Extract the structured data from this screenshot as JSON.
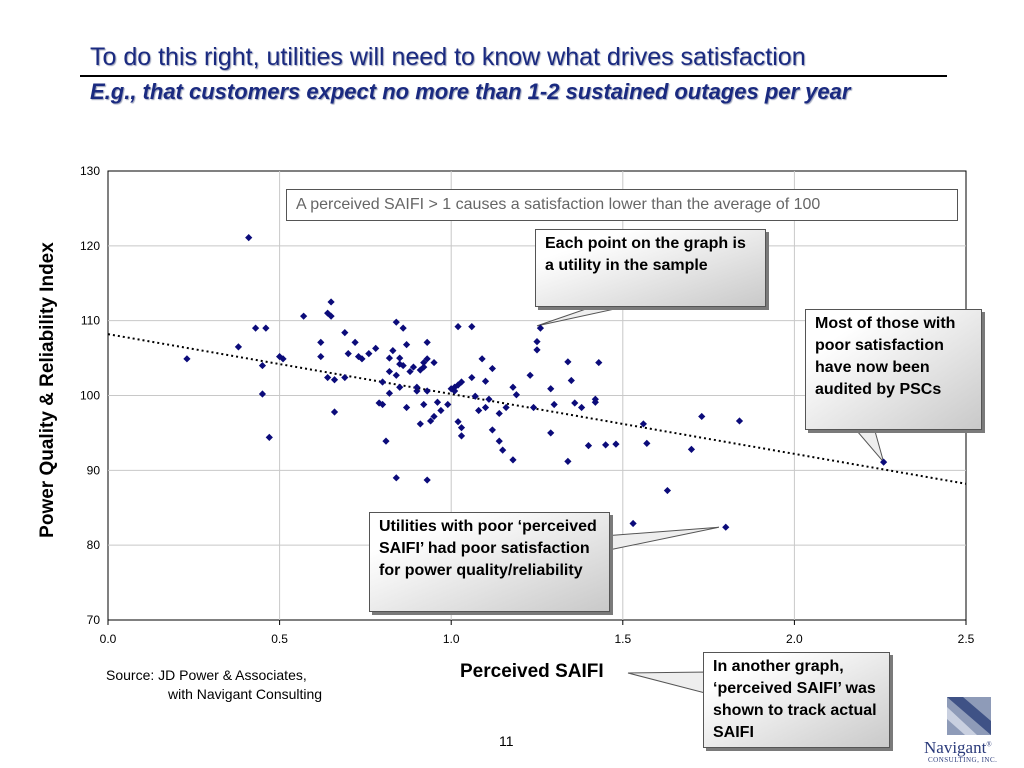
{
  "slide": {
    "title": "To do this right, utilities will need to know what drives satisfaction",
    "subtitle": "E.g., that customers expect no more than 1-2 sustained outages per year",
    "page_number": "11",
    "source_line1": "Source: JD Power & Associates,",
    "source_line2": "with Navigant Consulting",
    "logo_name": "Navigant",
    "logo_sub": "CONSULTING, INC.",
    "logo_mark": "®"
  },
  "annotations": {
    "box": "A perceived SAIFI > 1 causes a satisfaction lower than the average of 100",
    "points_callout": "Each point on the graph is a utility in the sample",
    "psc_callout": "Most of those with poor satisfaction have now been audited by PSCs",
    "poor_callout": "Utilities with poor ‘perceived SAIFI’ had poor satisfaction for power quality/reliability",
    "track_callout": "In another graph, ‘perceived SAIFI’ was shown to track actual SAIFI"
  },
  "colors": {
    "title": "#1a2a80",
    "marker": "#0b0b7a",
    "trendline": "#000000",
    "grid": "#c8c8c8"
  },
  "chart_data": {
    "type": "scatter",
    "xlabel": "Perceived SAIFI",
    "ylabel": "Power Quality & Reliability Index",
    "xlim": [
      0,
      2.5
    ],
    "ylim": [
      70,
      130
    ],
    "x_ticks": [
      "0.0",
      "0.5",
      "1.0",
      "1.5",
      "2.0",
      "2.5"
    ],
    "y_ticks": [
      "70",
      "80",
      "90",
      "100",
      "110",
      "120",
      "130"
    ],
    "grid": true,
    "trendline": {
      "style": "dotted",
      "x": [
        0,
        2.5
      ],
      "y": [
        108.2,
        88.2
      ]
    },
    "points": [
      [
        0.23,
        104.9
      ],
      [
        0.38,
        106.5
      ],
      [
        0.41,
        121.1
      ],
      [
        0.43,
        109.0
      ],
      [
        0.45,
        100.2
      ],
      [
        0.45,
        104.0
      ],
      [
        0.46,
        109.0
      ],
      [
        0.47,
        94.4
      ],
      [
        0.5,
        105.2
      ],
      [
        0.51,
        104.9
      ],
      [
        0.57,
        110.6
      ],
      [
        0.62,
        107.1
      ],
      [
        0.62,
        105.2
      ],
      [
        0.64,
        111.0
      ],
      [
        0.64,
        102.4
      ],
      [
        0.65,
        110.6
      ],
      [
        0.65,
        112.5
      ],
      [
        0.66,
        97.8
      ],
      [
        0.66,
        102.1
      ],
      [
        0.69,
        108.4
      ],
      [
        0.69,
        102.4
      ],
      [
        0.7,
        105.6
      ],
      [
        0.72,
        107.1
      ],
      [
        0.73,
        105.2
      ],
      [
        0.74,
        104.9
      ],
      [
        0.76,
        105.6
      ],
      [
        0.78,
        106.3
      ],
      [
        0.79,
        99.0
      ],
      [
        0.8,
        101.8
      ],
      [
        0.8,
        98.8
      ],
      [
        0.81,
        93.9
      ],
      [
        0.82,
        105.0
      ],
      [
        0.82,
        103.2
      ],
      [
        0.82,
        100.3
      ],
      [
        0.83,
        106.0
      ],
      [
        0.84,
        109.8
      ],
      [
        0.84,
        102.7
      ],
      [
        0.84,
        89.0
      ],
      [
        0.85,
        105.0
      ],
      [
        0.85,
        104.2
      ],
      [
        0.85,
        101.1
      ],
      [
        0.86,
        109.0
      ],
      [
        0.86,
        104.0
      ],
      [
        0.87,
        106.8
      ],
      [
        0.87,
        98.4
      ],
      [
        0.88,
        103.2
      ],
      [
        0.89,
        103.8
      ],
      [
        0.9,
        101.1
      ],
      [
        0.9,
        100.6
      ],
      [
        0.91,
        96.2
      ],
      [
        0.91,
        103.4
      ],
      [
        0.92,
        98.8
      ],
      [
        0.92,
        103.8
      ],
      [
        0.92,
        104.4
      ],
      [
        0.93,
        104.9
      ],
      [
        0.93,
        107.1
      ],
      [
        0.93,
        100.6
      ],
      [
        0.93,
        88.7
      ],
      [
        0.94,
        96.6
      ],
      [
        0.95,
        104.4
      ],
      [
        0.95,
        97.2
      ],
      [
        0.96,
        99.1
      ],
      [
        0.97,
        98.0
      ],
      [
        0.99,
        98.8
      ],
      [
        1.0,
        100.9
      ],
      [
        1.01,
        101.1
      ],
      [
        1.01,
        100.6
      ],
      [
        1.02,
        109.2
      ],
      [
        1.02,
        101.4
      ],
      [
        1.02,
        96.5
      ],
      [
        1.03,
        101.8
      ],
      [
        1.03,
        95.7
      ],
      [
        1.03,
        94.6
      ],
      [
        1.06,
        109.2
      ],
      [
        1.06,
        102.4
      ],
      [
        1.07,
        99.9
      ],
      [
        1.08,
        98.0
      ],
      [
        1.09,
        104.9
      ],
      [
        1.1,
        101.9
      ],
      [
        1.1,
        98.4
      ],
      [
        1.11,
        99.5
      ],
      [
        1.12,
        103.6
      ],
      [
        1.12,
        95.4
      ],
      [
        1.14,
        97.6
      ],
      [
        1.14,
        93.9
      ],
      [
        1.15,
        92.7
      ],
      [
        1.16,
        98.4
      ],
      [
        1.18,
        91.4
      ],
      [
        1.18,
        101.1
      ],
      [
        1.19,
        100.1
      ],
      [
        1.23,
        102.7
      ],
      [
        1.24,
        98.4
      ],
      [
        1.25,
        106.1
      ],
      [
        1.25,
        107.2
      ],
      [
        1.26,
        109.0
      ],
      [
        1.29,
        100.9
      ],
      [
        1.29,
        95.0
      ],
      [
        1.3,
        98.8
      ],
      [
        1.34,
        104.5
      ],
      [
        1.34,
        91.2
      ],
      [
        1.35,
        102.0
      ],
      [
        1.36,
        99.0
      ],
      [
        1.38,
        98.4
      ],
      [
        1.4,
        93.3
      ],
      [
        1.42,
        99.5
      ],
      [
        1.42,
        99.1
      ],
      [
        1.43,
        104.4
      ],
      [
        1.45,
        93.4
      ],
      [
        1.48,
        93.5
      ],
      [
        1.53,
        82.9
      ],
      [
        1.56,
        96.2
      ],
      [
        1.57,
        93.6
      ],
      [
        1.63,
        87.3
      ],
      [
        1.7,
        92.8
      ],
      [
        1.73,
        97.2
      ],
      [
        1.8,
        82.4
      ],
      [
        1.84,
        96.6
      ],
      [
        2.26,
        91.1
      ]
    ]
  }
}
